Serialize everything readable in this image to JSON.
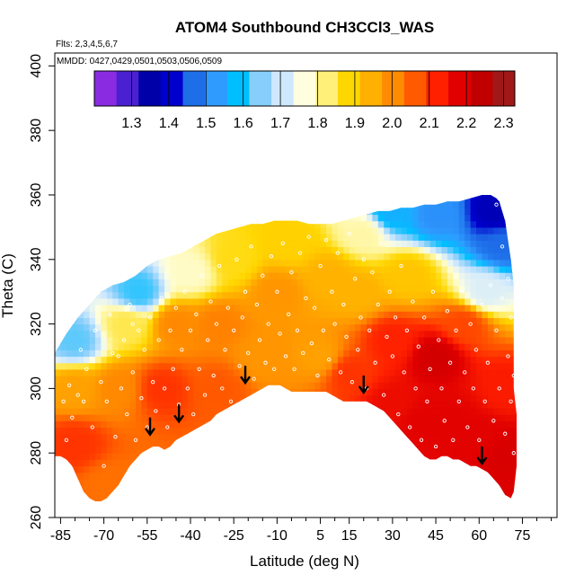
{
  "chart_data": {
    "type": "heatmap",
    "title": "ATOM4 Southbound CH3CCl3_WAS",
    "flights_note": "Flts: 2,3,4,5,6,7",
    "dates_note": "MMDD: 0427,0429,0501,0503,0506,0509",
    "xlabel": "Latitude (deg N)",
    "ylabel": "Theta (C)",
    "xlim": [
      -87,
      87
    ],
    "ylim": [
      260,
      404
    ],
    "x_ticks": [
      -85,
      -70,
      -55,
      -40,
      -25,
      -10,
      5,
      15,
      30,
      45,
      60,
      75
    ],
    "x_tick_labels": [
      "-85",
      "-70",
      "-55",
      "-40",
      "-25",
      "-10",
      "5",
      "15",
      "30",
      "45",
      "60",
      "75"
    ],
    "y_ticks": [
      260,
      280,
      300,
      320,
      340,
      360,
      380,
      400
    ],
    "y_tick_labels": [
      "260",
      "280",
      "300",
      "320",
      "340",
      "360",
      "380",
      "400"
    ],
    "colorbar": {
      "min": 1.2,
      "max": 2.33,
      "ticks": [
        1.3,
        1.4,
        1.5,
        1.6,
        1.7,
        1.8,
        1.9,
        2.0,
        2.1,
        2.2,
        2.3
      ],
      "tick_labels": [
        "1.3",
        "1.4",
        "1.5",
        "1.6",
        "1.7",
        "1.8",
        "1.9",
        "2.0",
        "2.1",
        "2.2",
        "2.3"
      ],
      "colors": [
        "#8a2be2",
        "#4b20d0",
        "#0000a8",
        "#0000cd",
        "#1e6ee8",
        "#2f9bff",
        "#00bfff",
        "#87cefa",
        "#cfe8ff",
        "#ffffe0",
        "#fff07a",
        "#ffd700",
        "#ffb000",
        "#ff8c00",
        "#ff5a00",
        "#ff2000",
        "#e00000",
        "#c00000",
        "#a01818"
      ]
    },
    "region_top": [
      [
        -87,
        311
      ],
      [
        -83,
        317
      ],
      [
        -79,
        322
      ],
      [
        -75,
        326
      ],
      [
        -71,
        330
      ],
      [
        -67,
        332
      ],
      [
        -63,
        333
      ],
      [
        -59,
        335
      ],
      [
        -55,
        338
      ],
      [
        -51,
        340
      ],
      [
        -47,
        341
      ],
      [
        -43,
        342
      ],
      [
        -39,
        344
      ],
      [
        -35,
        346
      ],
      [
        -31,
        348
      ],
      [
        -27,
        349
      ],
      [
        -23,
        350
      ],
      [
        -19,
        351
      ],
      [
        -15,
        351
      ],
      [
        -11,
        352
      ],
      [
        -7,
        352
      ],
      [
        -3,
        352
      ],
      [
        1,
        351
      ],
      [
        5,
        351
      ],
      [
        9,
        351
      ],
      [
        13,
        352
      ],
      [
        17,
        353
      ],
      [
        21,
        354
      ],
      [
        25,
        355
      ],
      [
        29,
        355
      ],
      [
        33,
        356
      ],
      [
        37,
        356
      ],
      [
        41,
        357
      ],
      [
        45,
        357
      ],
      [
        49,
        358
      ],
      [
        53,
        358
      ],
      [
        57,
        359
      ],
      [
        61,
        360
      ],
      [
        64,
        360
      ],
      [
        66,
        359
      ],
      [
        67,
        358
      ],
      [
        69,
        352
      ],
      [
        70,
        346
      ],
      [
        71,
        340
      ],
      [
        72,
        332
      ],
      [
        72,
        324
      ],
      [
        72,
        316
      ],
      [
        72,
        308
      ],
      [
        72,
        300
      ],
      [
        73,
        292
      ],
      [
        73,
        284
      ],
      [
        73,
        276
      ],
      [
        72,
        268
      ],
      [
        71,
        266
      ]
    ],
    "region_bottom": [
      [
        -87,
        279
      ],
      [
        -85,
        279
      ],
      [
        -83,
        278
      ],
      [
        -81,
        276
      ],
      [
        -79,
        272
      ],
      [
        -77,
        268
      ],
      [
        -75,
        266
      ],
      [
        -73,
        265
      ],
      [
        -71,
        265
      ],
      [
        -69,
        266
      ],
      [
        -67,
        268
      ],
      [
        -65,
        270
      ],
      [
        -63,
        273
      ],
      [
        -61,
        276
      ],
      [
        -59,
        278
      ],
      [
        -57,
        280
      ],
      [
        -55,
        281
      ],
      [
        -53,
        282
      ],
      [
        -51,
        282
      ],
      [
        -49,
        281
      ],
      [
        -47,
        282
      ],
      [
        -45,
        284
      ],
      [
        -43,
        285
      ],
      [
        -41,
        286
      ],
      [
        -39,
        287
      ],
      [
        -37,
        288
      ],
      [
        -35,
        289
      ],
      [
        -33,
        290
      ],
      [
        -31,
        292
      ],
      [
        -29,
        293
      ],
      [
        -27,
        294
      ],
      [
        -25,
        295
      ],
      [
        -23,
        296
      ],
      [
        -21,
        297
      ],
      [
        -19,
        298
      ],
      [
        -17,
        299
      ],
      [
        -15,
        300
      ],
      [
        -13,
        301
      ],
      [
        -11,
        301
      ],
      [
        -9,
        301
      ],
      [
        -7,
        300
      ],
      [
        -5,
        299
      ],
      [
        -3,
        299
      ],
      [
        -1,
        299
      ],
      [
        1,
        299
      ],
      [
        3,
        299
      ],
      [
        5,
        299
      ],
      [
        7,
        299
      ],
      [
        9,
        298
      ],
      [
        11,
        297
      ],
      [
        13,
        296
      ],
      [
        15,
        296
      ],
      [
        17,
        296
      ],
      [
        19,
        296
      ],
      [
        21,
        296
      ],
      [
        23,
        295
      ],
      [
        25,
        294
      ],
      [
        27,
        293
      ],
      [
        29,
        291
      ],
      [
        31,
        289
      ],
      [
        33,
        287
      ],
      [
        35,
        285
      ],
      [
        37,
        283
      ],
      [
        39,
        281
      ],
      [
        41,
        279
      ],
      [
        43,
        278
      ],
      [
        45,
        278
      ],
      [
        47,
        279
      ],
      [
        49,
        279
      ],
      [
        51,
        278
      ],
      [
        53,
        278
      ],
      [
        55,
        277
      ],
      [
        57,
        276
      ],
      [
        59,
        276
      ],
      [
        61,
        275
      ],
      [
        63,
        274
      ],
      [
        65,
        272
      ],
      [
        67,
        270
      ],
      [
        69,
        267
      ],
      [
        71,
        266
      ]
    ],
    "field_anchors": [
      {
        "lat": -80,
        "theta": 283,
        "value": 2.12
      },
      {
        "lat": -80,
        "theta": 300,
        "value": 1.98
      },
      {
        "lat": -80,
        "theta": 315,
        "value": 1.62
      },
      {
        "lat": -68,
        "theta": 270,
        "value": 2.05
      },
      {
        "lat": -65,
        "theta": 300,
        "value": 2.02
      },
      {
        "lat": -62,
        "theta": 320,
        "value": 1.85
      },
      {
        "lat": -58,
        "theta": 330,
        "value": 1.6
      },
      {
        "lat": -50,
        "theta": 300,
        "value": 2.12
      },
      {
        "lat": -45,
        "theta": 320,
        "value": 2.02
      },
      {
        "lat": -40,
        "theta": 336,
        "value": 1.78
      },
      {
        "lat": -30,
        "theta": 300,
        "value": 2.08
      },
      {
        "lat": -30,
        "theta": 320,
        "value": 2.03
      },
      {
        "lat": -25,
        "theta": 340,
        "value": 1.88
      },
      {
        "lat": -15,
        "theta": 310,
        "value": 2.0
      },
      {
        "lat": -10,
        "theta": 330,
        "value": 2.0
      },
      {
        "lat": -5,
        "theta": 345,
        "value": 1.9
      },
      {
        "lat": 5,
        "theta": 310,
        "value": 1.98
      },
      {
        "lat": 8,
        "theta": 335,
        "value": 1.95
      },
      {
        "lat": 15,
        "theta": 305,
        "value": 2.12
      },
      {
        "lat": 18,
        "theta": 330,
        "value": 1.95
      },
      {
        "lat": 20,
        "theta": 348,
        "value": 1.8
      },
      {
        "lat": 30,
        "theta": 295,
        "value": 2.18
      },
      {
        "lat": 30,
        "theta": 315,
        "value": 2.14
      },
      {
        "lat": 35,
        "theta": 335,
        "value": 1.92
      },
      {
        "lat": 40,
        "theta": 290,
        "value": 2.2
      },
      {
        "lat": 45,
        "theta": 310,
        "value": 2.23
      },
      {
        "lat": 50,
        "theta": 290,
        "value": 2.2
      },
      {
        "lat": 55,
        "theta": 320,
        "value": 2.1
      },
      {
        "lat": 60,
        "theta": 285,
        "value": 2.2
      },
      {
        "lat": 62,
        "theta": 330,
        "value": 1.72
      },
      {
        "lat": 68,
        "theta": 345,
        "value": 1.45
      },
      {
        "lat": 66,
        "theta": 355,
        "value": 1.35
      },
      {
        "lat": 30,
        "theta": 355,
        "value": 1.55
      },
      {
        "lat": 45,
        "theta": 354,
        "value": 1.5
      },
      {
        "lat": 70,
        "theta": 300,
        "value": 2.15
      },
      {
        "lat": 70,
        "theta": 280,
        "value": 2.22
      }
    ],
    "arrows": [
      {
        "lat": -54,
        "theta": 286
      },
      {
        "lat": -44,
        "theta": 290
      },
      {
        "lat": -21,
        "theta": 302
      },
      {
        "lat": 20,
        "theta": 299
      },
      {
        "lat": 61,
        "theta": 277
      }
    ],
    "sample_points": [
      [
        -83,
        284
      ],
      [
        -81,
        291
      ],
      [
        -79,
        298
      ],
      [
        -78,
        312
      ],
      [
        -76,
        306
      ],
      [
        -74,
        288
      ],
      [
        -73,
        318
      ],
      [
        -71,
        302
      ],
      [
        -70,
        276
      ],
      [
        -69,
        296
      ],
      [
        -68,
        323
      ],
      [
        -66,
        285
      ],
      [
        -65,
        310
      ],
      [
        -64,
        300
      ],
      [
        -63,
        315
      ],
      [
        -62,
        292
      ],
      [
        -61,
        326
      ],
      [
        -60,
        305
      ],
      [
        -59,
        284
      ],
      [
        -58,
        318
      ],
      [
        -57,
        297
      ],
      [
        -56,
        312
      ],
      [
        -55,
        288
      ],
      [
        -54,
        322
      ],
      [
        -53,
        302
      ],
      [
        -52,
        293
      ],
      [
        -51,
        315
      ],
      [
        -50,
        328
      ],
      [
        -49,
        300
      ],
      [
        -48,
        288
      ],
      [
        -47,
        318
      ],
      [
        -46,
        306
      ],
      [
        -45,
        325
      ],
      [
        -44,
        295
      ],
      [
        -43,
        312
      ],
      [
        -42,
        330
      ],
      [
        -41,
        300
      ],
      [
        -40,
        318
      ],
      [
        -39,
        292
      ],
      [
        -38,
        323
      ],
      [
        -37,
        306
      ],
      [
        -36,
        335
      ],
      [
        -35,
        298
      ],
      [
        -34,
        315
      ],
      [
        -33,
        327
      ],
      [
        -32,
        304
      ],
      [
        -31,
        320
      ],
      [
        -30,
        338
      ],
      [
        -29,
        300
      ],
      [
        -28,
        312
      ],
      [
        -27,
        325
      ],
      [
        -26,
        296
      ],
      [
        -25,
        318
      ],
      [
        -24,
        340
      ],
      [
        -23,
        307
      ],
      [
        -22,
        322
      ],
      [
        -21,
        330
      ],
      [
        -20,
        311
      ],
      [
        -19,
        344
      ],
      [
        -18,
        303
      ],
      [
        -17,
        326
      ],
      [
        -16,
        315
      ],
      [
        -15,
        335
      ],
      [
        -14,
        308
      ],
      [
        -13,
        320
      ],
      [
        -12,
        341
      ],
      [
        -11,
        306
      ],
      [
        -10,
        330
      ],
      [
        -9,
        317
      ],
      [
        -8,
        345
      ],
      [
        -7,
        310
      ],
      [
        -6,
        323
      ],
      [
        -5,
        336
      ],
      [
        -4,
        306
      ],
      [
        -3,
        318
      ],
      [
        -2,
        342
      ],
      [
        -1,
        311
      ],
      [
        0,
        328
      ],
      [
        1,
        347
      ],
      [
        2,
        314
      ],
      [
        3,
        325
      ],
      [
        4,
        304
      ],
      [
        5,
        338
      ],
      [
        6,
        318
      ],
      [
        7,
        346
      ],
      [
        8,
        309
      ],
      [
        9,
        330
      ],
      [
        10,
        320
      ],
      [
        11,
        342
      ],
      [
        12,
        305
      ],
      [
        13,
        326
      ],
      [
        14,
        316
      ],
      [
        15,
        348
      ],
      [
        16,
        302
      ],
      [
        17,
        334
      ],
      [
        18,
        312
      ],
      [
        19,
        322
      ],
      [
        20,
        340
      ],
      [
        21,
        300
      ],
      [
        22,
        318
      ],
      [
        23,
        336
      ],
      [
        24,
        308
      ],
      [
        25,
        326
      ],
      [
        26,
        345
      ],
      [
        27,
        298
      ],
      [
        28,
        316
      ],
      [
        29,
        330
      ],
      [
        30,
        310
      ],
      [
        31,
        322
      ],
      [
        32,
        292
      ],
      [
        33,
        338
      ],
      [
        34,
        305
      ],
      [
        35,
        318
      ],
      [
        36,
        288
      ],
      [
        37,
        327
      ],
      [
        38,
        300
      ],
      [
        39,
        313
      ],
      [
        40,
        284
      ],
      [
        41,
        322
      ],
      [
        42,
        296
      ],
      [
        43,
        306
      ],
      [
        44,
        330
      ],
      [
        45,
        282
      ],
      [
        46,
        315
      ],
      [
        47,
        300
      ],
      [
        48,
        290
      ],
      [
        49,
        324
      ],
      [
        50,
        308
      ],
      [
        51,
        284
      ],
      [
        52,
        318
      ],
      [
        53,
        296
      ],
      [
        54,
        330
      ],
      [
        55,
        305
      ],
      [
        56,
        288
      ],
      [
        57,
        320
      ],
      [
        58,
        300
      ],
      [
        59,
        312
      ],
      [
        60,
        284
      ],
      [
        61,
        326
      ],
      [
        62,
        296
      ],
      [
        63,
        308
      ],
      [
        64,
        332
      ],
      [
        65,
        290
      ],
      [
        66,
        318
      ],
      [
        67,
        300
      ],
      [
        68,
        328
      ],
      [
        69,
        286
      ],
      [
        70,
        310
      ],
      [
        71,
        296
      ],
      [
        72,
        280
      ],
      [
        72,
        304
      ],
      [
        71,
        322
      ],
      [
        70,
        334
      ],
      [
        68,
        344
      ],
      [
        66,
        357
      ],
      [
        -84,
        296
      ],
      [
        -82,
        301
      ],
      [
        -77,
        296
      ],
      [
        -67,
        311
      ],
      [
        -60,
        320
      ]
    ]
  }
}
